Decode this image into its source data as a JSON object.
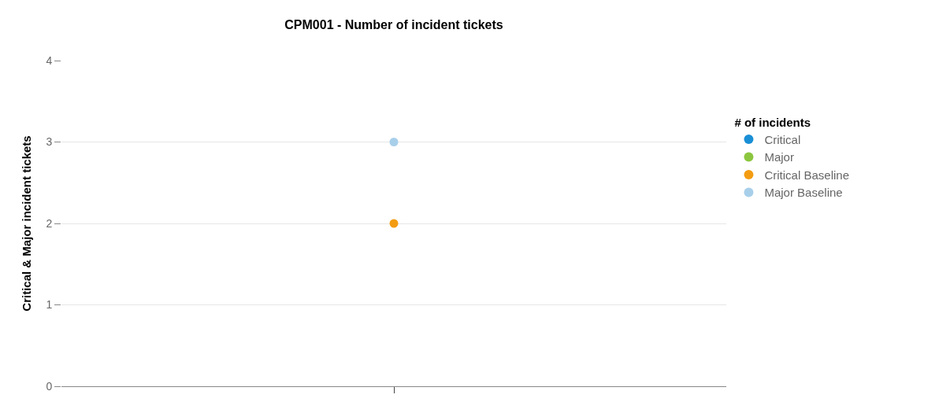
{
  "chart_data": {
    "type": "scatter",
    "title": "CPM001 - Number of incident tickets",
    "ylabel": "Critical & Major incident tickets",
    "legend_title": "# of incidents",
    "categories": [
      null
    ],
    "series": [
      {
        "name": "Critical",
        "color": "#1a8fd6",
        "values": [
          null
        ]
      },
      {
        "name": "Major",
        "color": "#8cc63f",
        "values": [
          null
        ]
      },
      {
        "name": "Critical Baseline",
        "color": "#f39c12",
        "values": [
          2
        ]
      },
      {
        "name": "Major Baseline",
        "color": "#a8cfea",
        "values": [
          3
        ]
      }
    ],
    "ylim": [
      0,
      4
    ],
    "yticks": [
      0,
      1,
      2,
      3,
      4
    ],
    "grid": "y",
    "legend": "right",
    "marker": "circle"
  }
}
